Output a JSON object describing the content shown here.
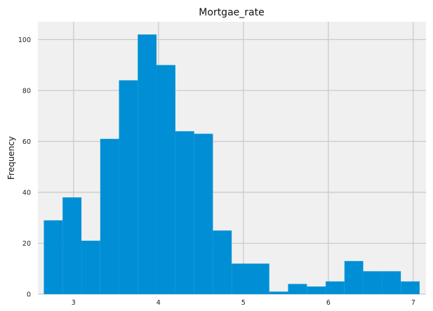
{
  "chart_data": {
    "type": "bar",
    "title": "Mortgae_rate",
    "xlabel": "",
    "ylabel": "Frequency",
    "xlim": [
      2.58,
      7.15
    ],
    "ylim": [
      0,
      107
    ],
    "x_ticks": [
      3,
      4,
      5,
      6,
      7
    ],
    "y_ticks": [
      0,
      20,
      40,
      60,
      80,
      100
    ],
    "grid": true,
    "bar_color": "#008fd5",
    "background_color": "#f0f0f0",
    "grid_color": "#cbcbcb",
    "bin_edges": [
      2.65,
      2.871,
      3.093,
      3.314,
      3.535,
      3.756,
      3.977,
      4.199,
      4.42,
      4.641,
      4.862,
      5.084,
      5.305,
      5.526,
      5.748,
      5.969,
      6.19,
      6.411,
      6.633,
      6.854,
      7.075
    ],
    "values": [
      29,
      38,
      21,
      61,
      84,
      102,
      90,
      64,
      63,
      25,
      12,
      12,
      1,
      4,
      3,
      5,
      13,
      9,
      9,
      5
    ]
  }
}
